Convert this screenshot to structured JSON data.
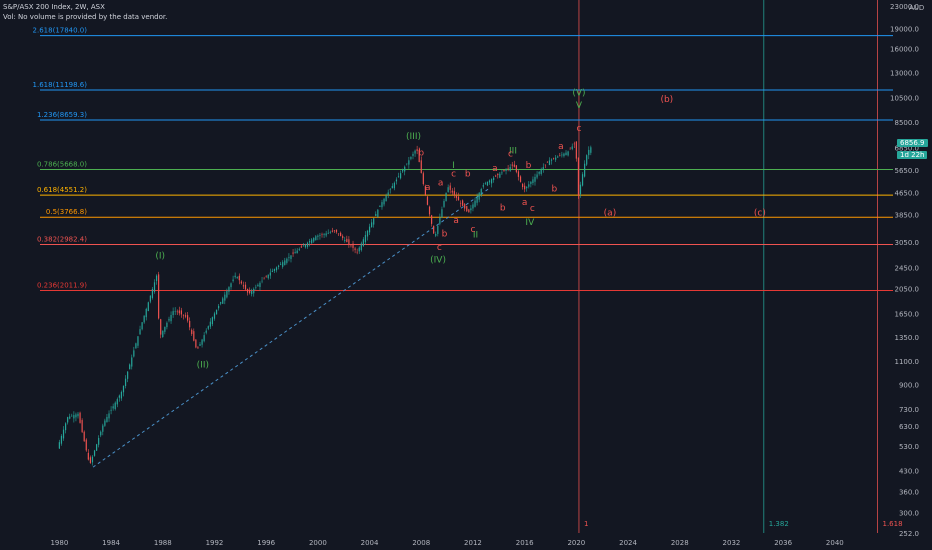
{
  "header": {
    "title": "S&P/ASX 200 Index, 2W, ASX",
    "vol_notice": "Vol: No volume is provided by the data vendor."
  },
  "price_axis": {
    "currency": "AUD",
    "ticks": [
      "23000.0",
      "19000.0",
      "16000.0",
      "13000.0",
      "10500.0",
      "8500.0",
      "6850.0",
      "5650.0",
      "4650.0",
      "3850.0",
      "3050.0",
      "2450.0",
      "2050.0",
      "1650.0",
      "1350.0",
      "1100.0",
      "900.0",
      "730.0",
      "630.0",
      "530.0",
      "430.0",
      "360.0",
      "300.0",
      "252.0"
    ],
    "last_price": "6856.9",
    "countdown": "1d 22h"
  },
  "time_axis": {
    "ticks": [
      "1980",
      "1984",
      "1988",
      "1992",
      "1996",
      "2000",
      "2004",
      "2008",
      "2012",
      "2016",
      "2020",
      "2024",
      "2028",
      "2032",
      "2036",
      "2040"
    ]
  },
  "fib_levels": [
    {
      "label": "2.618(17840.0)",
      "value": 17840.0,
      "color": "#2196f3"
    },
    {
      "label": "1.618(11198.6)",
      "value": 11198.6,
      "color": "#2196f3"
    },
    {
      "label": "1.236(8659.3)",
      "value": 8659.3,
      "color": "#2196f3"
    },
    {
      "label": "0.786(5668.0)",
      "value": 5668.0,
      "color": "#4caf50"
    },
    {
      "label": "0.618(4551.2)",
      "value": 4551.2,
      "color": "#ffb300"
    },
    {
      "label": "0.5(3766.8)",
      "value": 3766.8,
      "color": "#ff9800"
    },
    {
      "label": "0.382(2982.4)",
      "value": 2982.4,
      "color": "#ef5350"
    },
    {
      "label": "0.236(2011.9)",
      "value": 2011.9,
      "color": "#e53935"
    }
  ],
  "time_fibs": [
    {
      "label": "1",
      "date": 2020.2,
      "color": "#ef5350"
    },
    {
      "label": "1.382",
      "date": 2034.5,
      "color": "#26a69a"
    },
    {
      "label": "1.618",
      "date": 2043.3,
      "color": "#ef5350"
    }
  ],
  "trendline": {
    "start": {
      "date": 1982.6,
      "value": 443
    },
    "end": {
      "date": 2013.2,
      "value": 4800
    }
  },
  "wave_labels": [
    {
      "text": "(I)",
      "date": 1987.8,
      "value": 2650,
      "color": "#4caf50"
    },
    {
      "text": "(II)",
      "date": 1991.1,
      "value": 1040,
      "color": "#4caf50"
    },
    {
      "text": "(III)",
      "date": 2007.4,
      "value": 7350,
      "color": "#4caf50"
    },
    {
      "text": "(IV)",
      "date": 2009.3,
      "value": 2560,
      "color": "#4caf50"
    },
    {
      "text": "(V)",
      "date": 2020.2,
      "value": 10700,
      "color": "#4caf50"
    },
    {
      "text": "V",
      "date": 2020.2,
      "value": 9600,
      "color": "#4caf50"
    },
    {
      "text": "I",
      "date": 2010.5,
      "value": 5750,
      "color": "#4caf50"
    },
    {
      "text": "II",
      "date": 2012.2,
      "value": 3160,
      "color": "#4caf50"
    },
    {
      "text": "III",
      "date": 2015.1,
      "value": 6500,
      "color": "#4caf50"
    },
    {
      "text": "IV",
      "date": 2016.4,
      "value": 3520,
      "color": "#4caf50"
    },
    {
      "text": "b",
      "date": 2008.0,
      "value": 6400,
      "color": "#ef5350"
    },
    {
      "text": "a",
      "date": 2008.5,
      "value": 4750,
      "color": "#ef5350"
    },
    {
      "text": "a",
      "date": 2009.5,
      "value": 4950,
      "color": "#ef5350"
    },
    {
      "text": "b",
      "date": 2009.8,
      "value": 3200,
      "color": "#ef5350"
    },
    {
      "text": "c",
      "date": 2009.4,
      "value": 2850,
      "color": "#ef5350"
    },
    {
      "text": "c",
      "date": 2010.5,
      "value": 5350,
      "color": "#ef5350"
    },
    {
      "text": "b",
      "date": 2011.6,
      "value": 5350,
      "color": "#ef5350"
    },
    {
      "text": "a",
      "date": 2010.7,
      "value": 3580,
      "color": "#ef5350"
    },
    {
      "text": "c",
      "date": 2012.0,
      "value": 3320,
      "color": "#ef5350"
    },
    {
      "text": "a",
      "date": 2013.7,
      "value": 5600,
      "color": "#ef5350"
    },
    {
      "text": "b",
      "date": 2014.3,
      "value": 3990,
      "color": "#ef5350"
    },
    {
      "text": "c",
      "date": 2014.9,
      "value": 6350,
      "color": "#ef5350"
    },
    {
      "text": "b",
      "date": 2016.3,
      "value": 5750,
      "color": "#ef5350"
    },
    {
      "text": "a",
      "date": 2016.0,
      "value": 4180,
      "color": "#ef5350"
    },
    {
      "text": "c",
      "date": 2016.6,
      "value": 3980,
      "color": "#ef5350"
    },
    {
      "text": "a",
      "date": 2018.8,
      "value": 6750,
      "color": "#ef5350"
    },
    {
      "text": "c",
      "date": 2020.2,
      "value": 7900,
      "color": "#ef5350"
    },
    {
      "text": "b",
      "date": 2018.3,
      "value": 4700,
      "color": "#ef5350"
    },
    {
      "text": "(b)",
      "date": 2027.0,
      "value": 10100,
      "color": "#ef5350"
    },
    {
      "text": "(a)",
      "date": 2022.6,
      "value": 3820,
      "color": "#ef5350"
    },
    {
      "text": "(c)",
      "date": 2034.2,
      "value": 3820,
      "color": "#ef5350"
    }
  ],
  "chart_data": {
    "type": "candlestick",
    "title": "S&P/ASX 200 Index, 2W, ASX",
    "xlabel": "",
    "ylabel": "",
    "scale": "log",
    "xlim": [
      1978.5,
      2044.5
    ],
    "ylim": [
      252,
      23000
    ],
    "grid": false,
    "price_anchors": [
      {
        "date": 1980.0,
        "value": 520
      },
      {
        "date": 1980.8,
        "value": 680
      },
      {
        "date": 1981.6,
        "value": 700
      },
      {
        "date": 1982.5,
        "value": 450
      },
      {
        "date": 1983.6,
        "value": 650
      },
      {
        "date": 1985.0,
        "value": 850
      },
      {
        "date": 1986.5,
        "value": 1500
      },
      {
        "date": 1987.7,
        "value": 2300
      },
      {
        "date": 1987.9,
        "value": 1350
      },
      {
        "date": 1989.0,
        "value": 1700
      },
      {
        "date": 1990.0,
        "value": 1600
      },
      {
        "date": 1990.8,
        "value": 1200
      },
      {
        "date": 1992.0,
        "value": 1600
      },
      {
        "date": 1993.8,
        "value": 2300
      },
      {
        "date": 1994.8,
        "value": 1950
      },
      {
        "date": 1996.5,
        "value": 2350
      },
      {
        "date": 1998.0,
        "value": 2700
      },
      {
        "date": 2000.0,
        "value": 3200
      },
      {
        "date": 2001.5,
        "value": 3350
      },
      {
        "date": 2003.2,
        "value": 2800
      },
      {
        "date": 2005.0,
        "value": 4200
      },
      {
        "date": 2007.8,
        "value": 6800
      },
      {
        "date": 2008.5,
        "value": 4500
      },
      {
        "date": 2009.2,
        "value": 3150
      },
      {
        "date": 2010.2,
        "value": 4900
      },
      {
        "date": 2011.8,
        "value": 3900
      },
      {
        "date": 2013.0,
        "value": 5000
      },
      {
        "date": 2015.3,
        "value": 5900
      },
      {
        "date": 2016.1,
        "value": 4750
      },
      {
        "date": 2018.0,
        "value": 6100
      },
      {
        "date": 2019.5,
        "value": 6600
      },
      {
        "date": 2020.1,
        "value": 7150
      },
      {
        "date": 2020.3,
        "value": 4500
      },
      {
        "date": 2020.9,
        "value": 6300
      },
      {
        "date": 2021.2,
        "value": 6857
      }
    ]
  },
  "colors": {
    "background": "#131722",
    "text": "#d1d4dc",
    "axis_text": "#b2b5be",
    "candle_up": "#26a69a",
    "candle_down": "#ef5350",
    "trendline": "#4a90c8",
    "last_price_tag": "#26a69a"
  }
}
